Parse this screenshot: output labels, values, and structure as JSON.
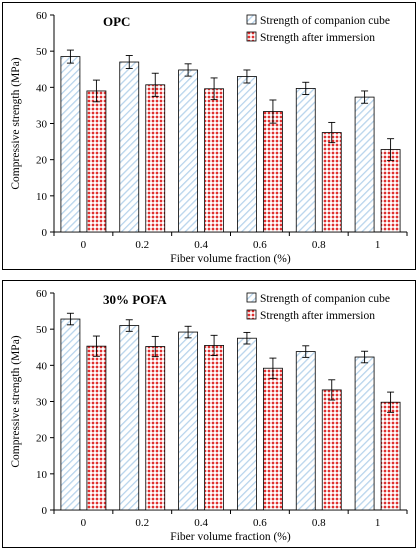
{
  "chart_data": [
    {
      "type": "bar",
      "title": "OPC",
      "xlabel": "Fiber volume fraction (%)",
      "ylabel": "Compressive strength (MPa)",
      "ylim": [
        0,
        60
      ],
      "yticks": [
        0,
        10,
        20,
        30,
        40,
        50,
        60
      ],
      "categories": [
        "0",
        "0.2",
        "0.4",
        "0.6",
        "0.8",
        "1"
      ],
      "series": [
        {
          "name": "Strength of companion cube",
          "values": [
            48.5,
            47.0,
            44.8,
            43.0,
            39.7,
            37.3
          ],
          "errors": [
            1.8,
            1.8,
            1.7,
            1.8,
            1.7,
            1.7
          ],
          "color": "#b8d4ec",
          "pattern": "hatch"
        },
        {
          "name": "Strength after immersion",
          "values": [
            39.0,
            40.7,
            39.6,
            33.3,
            27.5,
            22.8
          ],
          "errors": [
            3.0,
            3.2,
            3.0,
            3.2,
            2.8,
            3.0
          ],
          "color": "#e03030",
          "pattern": "dots"
        }
      ],
      "legend_position": "top-right",
      "grid": false
    },
    {
      "type": "bar",
      "title": "30% POFA",
      "xlabel": "Fiber volume fraction (%)",
      "ylabel": "Compressive strength (MPa)",
      "ylim": [
        0,
        60
      ],
      "yticks": [
        0,
        10,
        20,
        30,
        40,
        50,
        60
      ],
      "categories": [
        "0",
        "0.2",
        "0.4",
        "0.6",
        "0.8",
        "1"
      ],
      "series": [
        {
          "name": "Strength of companion cube",
          "values": [
            52.8,
            51.0,
            49.2,
            47.5,
            43.8,
            42.3
          ],
          "errors": [
            1.6,
            1.6,
            1.6,
            1.6,
            1.6,
            1.6
          ],
          "color": "#b8d4ec",
          "pattern": "hatch"
        },
        {
          "name": "Strength after immersion",
          "values": [
            45.3,
            45.2,
            45.5,
            39.2,
            33.2,
            29.8
          ],
          "errors": [
            2.8,
            2.8,
            2.8,
            2.8,
            2.8,
            2.8
          ],
          "color": "#e03030",
          "pattern": "dots"
        }
      ],
      "legend_position": "top-right",
      "grid": false
    }
  ]
}
